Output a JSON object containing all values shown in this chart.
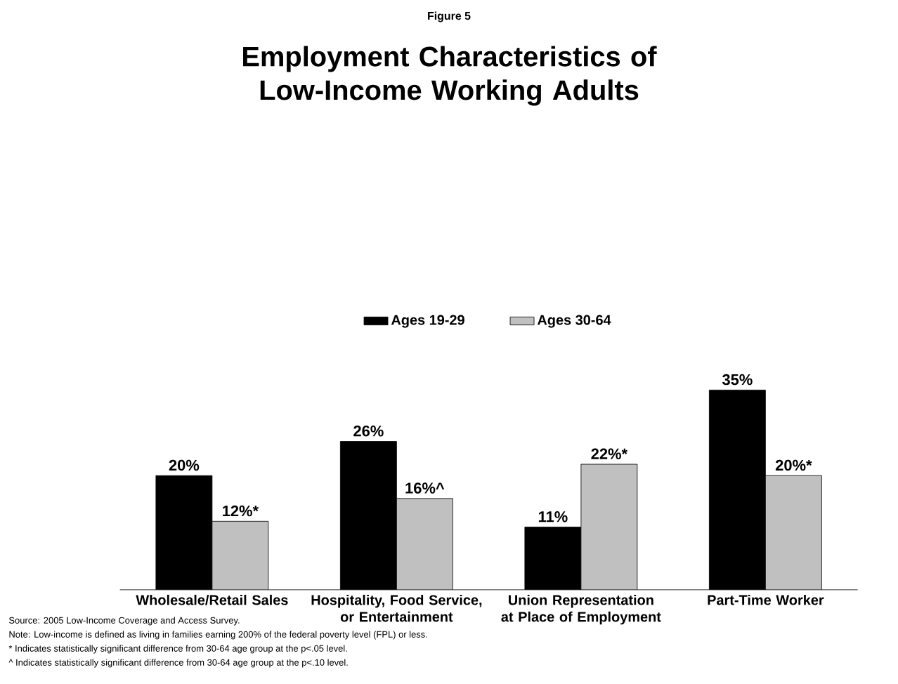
{
  "chart_data": {
    "type": "bar",
    "subtitle": "Figure 5",
    "title": "Employment Characteristics of Low-Income Working Adults",
    "categories": [
      "Wholesale/Retail Sales",
      "Hospitality, Food Service, or Entertainment",
      "Union Representation at Place of Employment",
      "Part-Time Worker"
    ],
    "series": [
      {
        "name": "Ages 19-29",
        "color": "#000000",
        "values": [
          20,
          26,
          11,
          35
        ],
        "value_labels": [
          "20%",
          "26%",
          "11%",
          "35%"
        ]
      },
      {
        "name": "Ages 30-64",
        "color": "#c0c0c0",
        "values": [
          12,
          16,
          22,
          20
        ],
        "value_labels": [
          "12%*",
          "16%^",
          "22%*",
          "20%*"
        ]
      }
    ],
    "legend": "top",
    "annotations": [
      "Source: 2005 Low-Income Coverage and Access Survey.",
      "Note: Low-income is defined as living in families earning 200% of the federal poverty level (FPL) or less.",
      "* Indicates statistically significant difference from 30-64 age group at the p<.05 level.",
      "^ Indicates statistically significant difference from 30-64 age group at the p<.10 level."
    ]
  }
}
